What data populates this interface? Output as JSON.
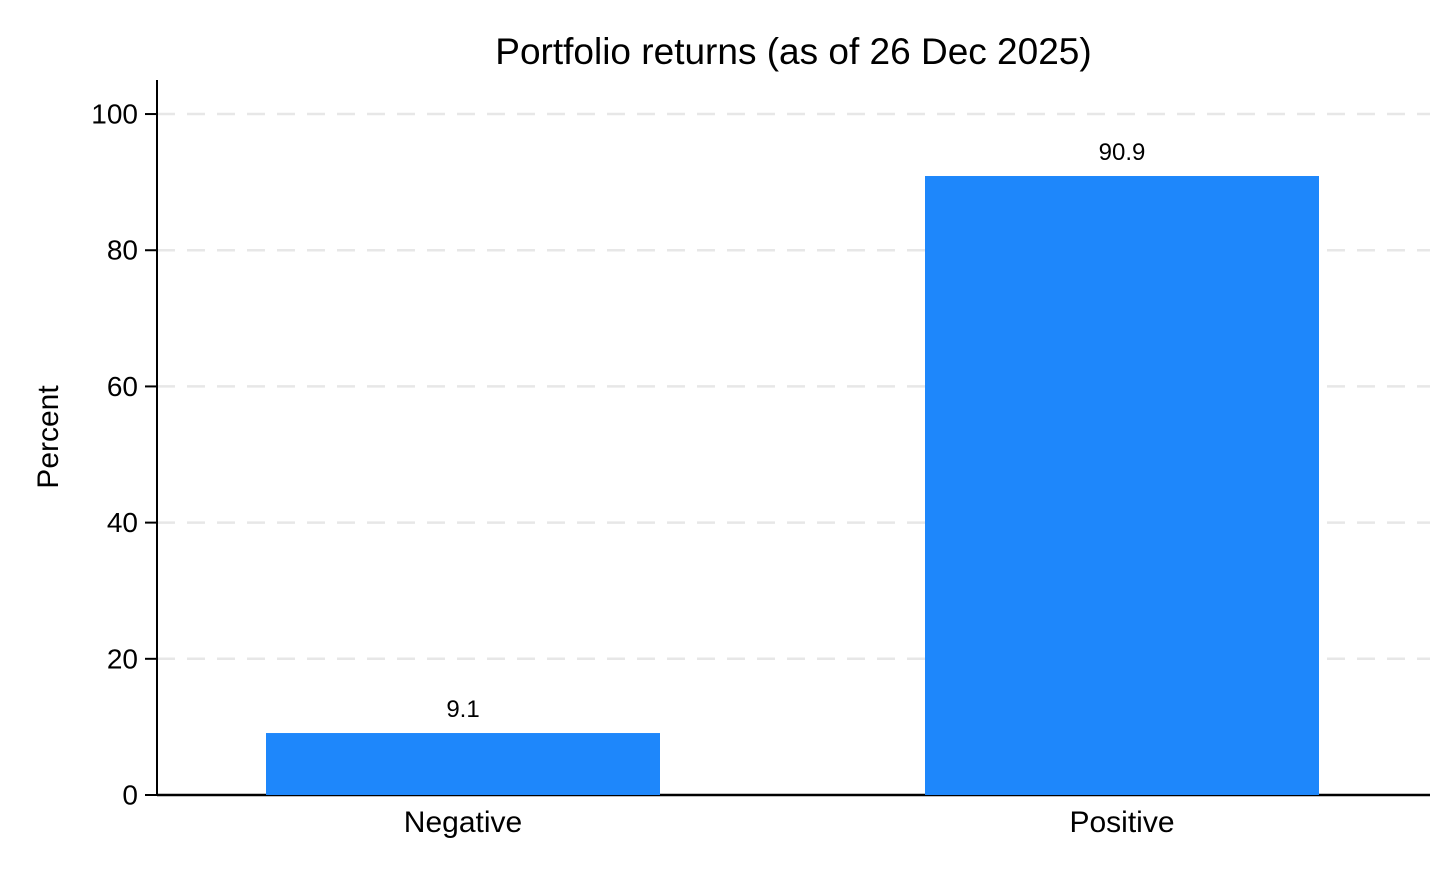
{
  "page": {
    "background": "#ffffff"
  },
  "chart_data": {
    "type": "bar",
    "title": "Portfolio returns (as of 26 Dec 2025)",
    "ylabel": "Percent",
    "xlabel": "",
    "categories": [
      "Negative",
      "Positive"
    ],
    "values": [
      9.1,
      90.9
    ],
    "value_labels": [
      "9.1",
      "90.9"
    ],
    "yticks": [
      0,
      20,
      40,
      60,
      80,
      100
    ],
    "ylim": [
      0,
      105
    ],
    "grid": "horizontal-dashed",
    "legend": "none",
    "bar_color": "#1e87fb",
    "grid_color": "#e7e7e7",
    "axis_color": "#000000",
    "text_color": "#000000"
  }
}
